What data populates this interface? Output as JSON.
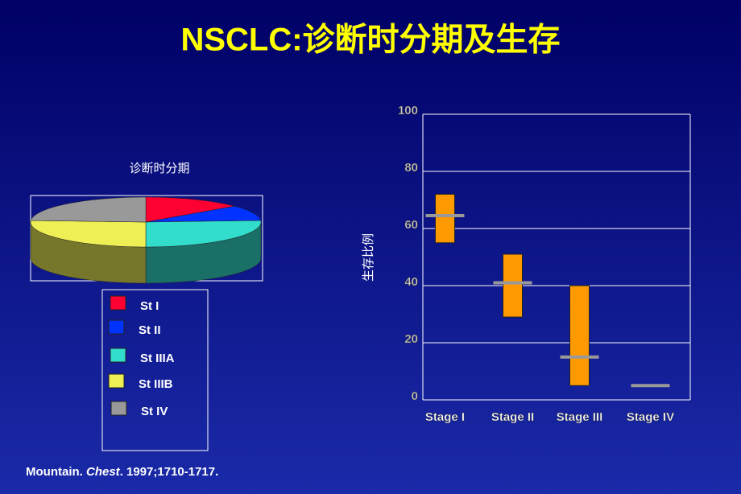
{
  "title": "NSCLC:诊断时分期及生存",
  "chart_data": [
    {
      "type": "pie",
      "title": "诊断时分期",
      "categories": [
        "St I",
        "St II",
        "St IIIA",
        "St IIIB",
        "St IV"
      ],
      "values": [
        14,
        10,
        26,
        26,
        24
      ],
      "colors": [
        "#ff0033",
        "#0033ff",
        "#33ddcc",
        "#eeee55",
        "#999999"
      ],
      "legend": "below"
    },
    {
      "type": "range",
      "y_label": "生存比例",
      "categories": [
        "Stage I",
        "Stage II",
        "Stage III",
        "Stage IV"
      ],
      "low": [
        55,
        29,
        5,
        null
      ],
      "high": [
        72,
        51,
        40,
        null
      ],
      "median": [
        64.5,
        41,
        15,
        5
      ],
      "color": "#ff9900",
      "median_color": "#999999",
      "ylim": [
        0,
        100
      ],
      "yticks": [
        0,
        20,
        40,
        60,
        80,
        100
      ],
      "grid": true
    }
  ],
  "citation": {
    "authors": "Mountain.",
    "journal": "Chest",
    "details": ". 1997;1710-1717."
  }
}
